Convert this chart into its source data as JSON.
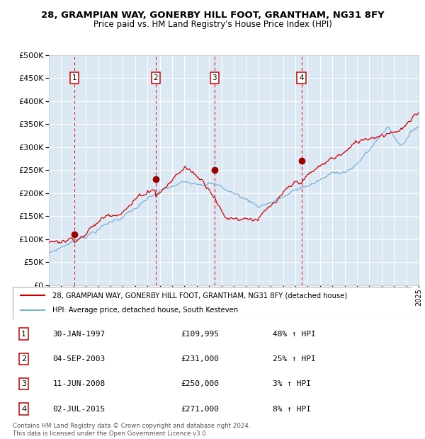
{
  "title": "28, GRAMPIAN WAY, GONERBY HILL FOOT, GRANTHAM, NG31 8FY",
  "subtitle": "Price paid vs. HM Land Registry's House Price Index (HPI)",
  "background_color": "#dce9f5",
  "hpi_color": "#7ab0d4",
  "price_color": "#cc0000",
  "marker_color": "#990000",
  "ylim": [
    0,
    500000
  ],
  "year_start": 1995,
  "year_end": 2025,
  "transactions": [
    {
      "num": 1,
      "date": "30-JAN-1997",
      "year": 1997.08,
      "price": 109995,
      "pct": "48% ↑ HPI"
    },
    {
      "num": 2,
      "date": "04-SEP-2003",
      "year": 2003.67,
      "price": 231000,
      "pct": "25% ↑ HPI"
    },
    {
      "num": 3,
      "date": "11-JUN-2008",
      "year": 2008.44,
      "price": 250000,
      "pct": "3% ↑ HPI"
    },
    {
      "num": 4,
      "date": "02-JUL-2015",
      "year": 2015.5,
      "price": 271000,
      "pct": "8% ↑ HPI"
    }
  ],
  "legend_line1": "28, GRAMPIAN WAY, GONERBY HILL FOOT, GRANTHAM, NG31 8FY (detached house)",
  "legend_line2": "HPI: Average price, detached house, South Kesteven",
  "footer": "Contains HM Land Registry data © Crown copyright and database right 2024.\nThis data is licensed under the Open Government Licence v3.0."
}
